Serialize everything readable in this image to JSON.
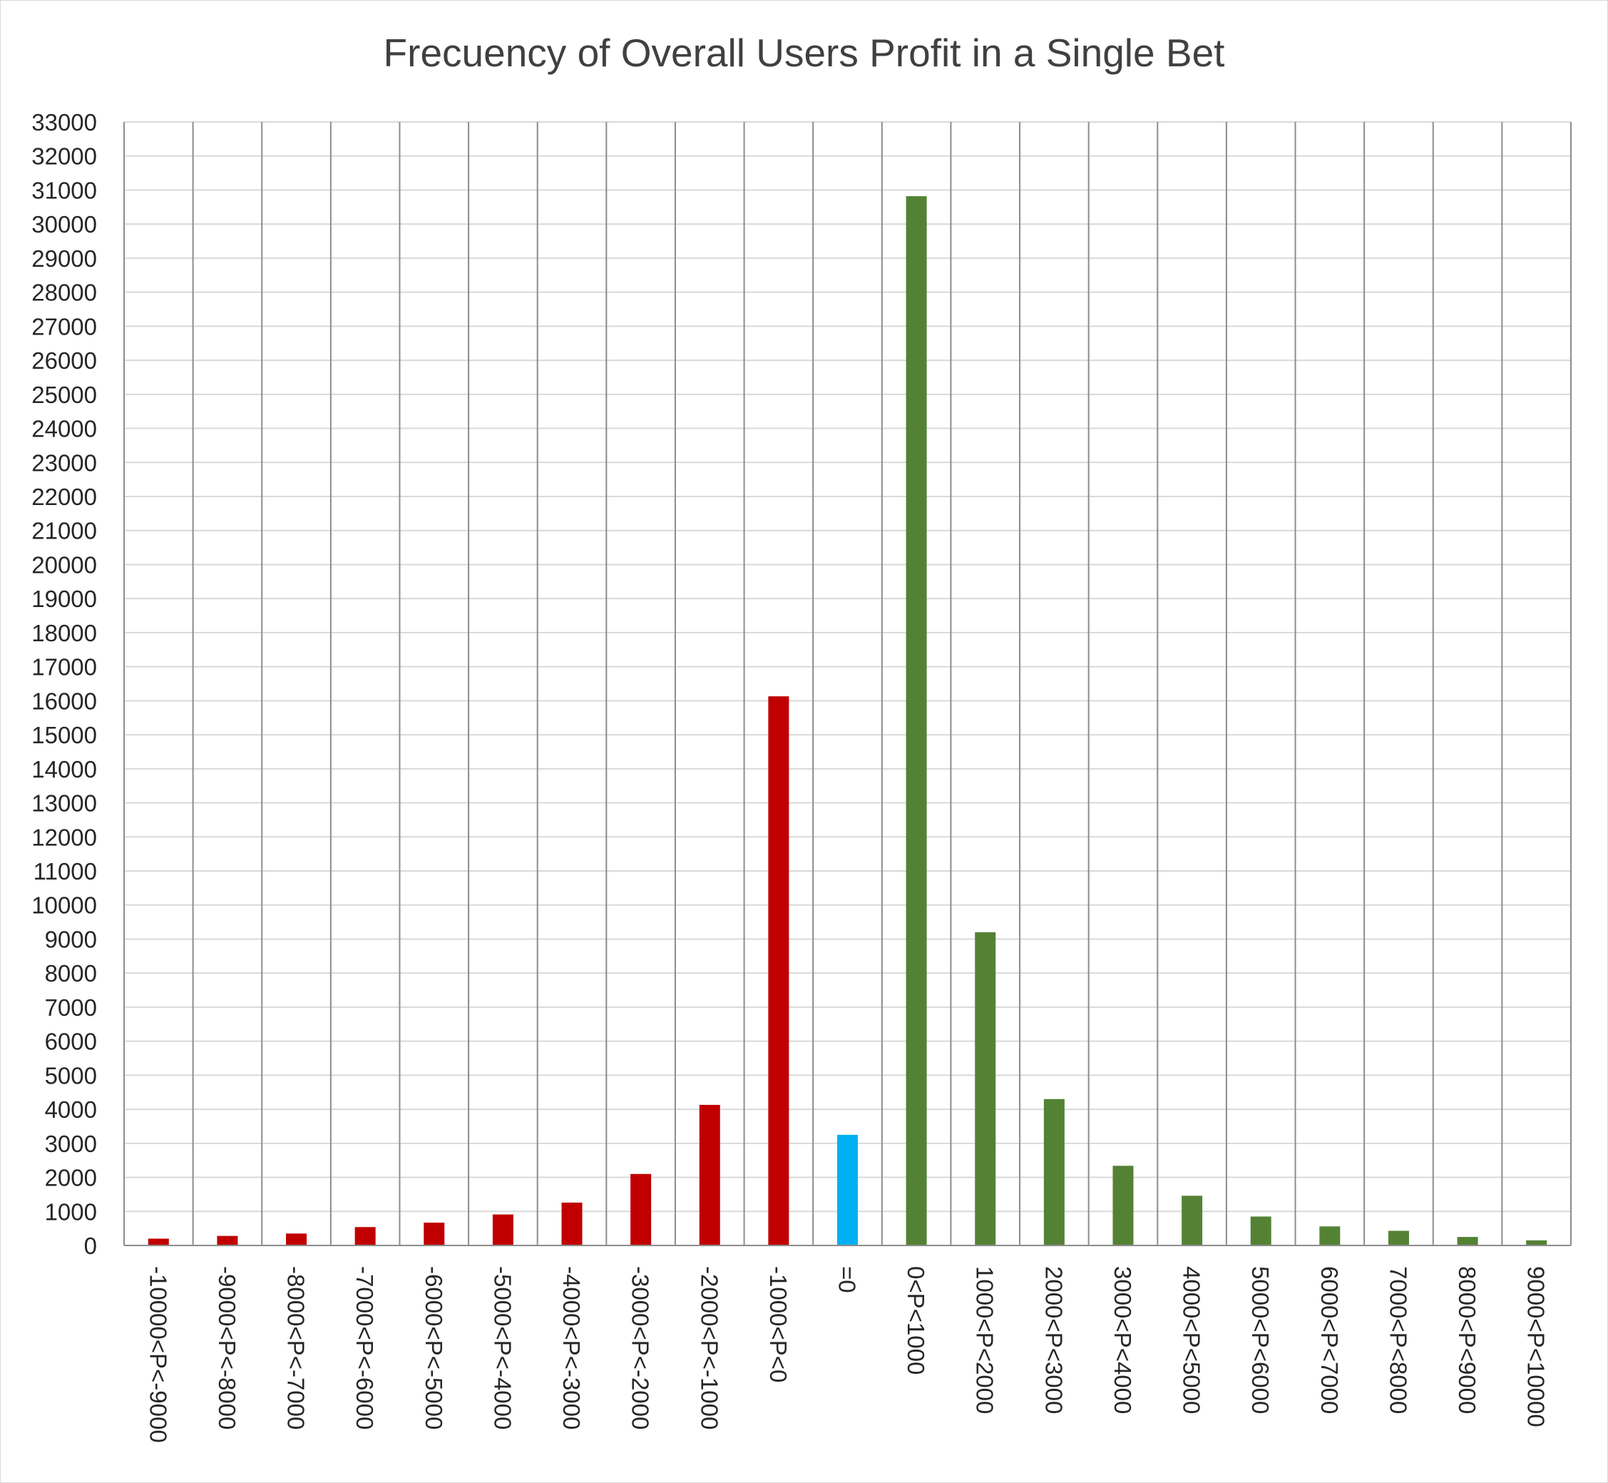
{
  "chart_data": {
    "type": "bar",
    "title": "Frecuency of Overall Users Profit in a Single Bet",
    "xlabel": "",
    "ylabel": "",
    "ylim": [
      0,
      33000
    ],
    "ytick_step": 1000,
    "grid": true,
    "legend": "none",
    "categories": [
      "-10000<P<-9000",
      "-9000<P<-8000",
      "-8000<P<-7000",
      "-7000<P<-6000",
      "-6000<P<-5000",
      "-5000<P<-4000",
      "-4000<P<-3000",
      "-3000<P<-2000",
      "-2000<P<-1000",
      "-1000<P<0",
      "=0",
      "0<P<1000",
      "1000<P<2000",
      "2000<P<3000",
      "3000<P<4000",
      "4000<P<5000",
      "5000<P<6000",
      "6000<P<7000",
      "7000<P<8000",
      "8000<P<9000",
      "9000<P<10000"
    ],
    "values": [
      200,
      280,
      350,
      540,
      670,
      910,
      1260,
      2100,
      4130,
      16130,
      3250,
      30820,
      9200,
      4300,
      2340,
      1460,
      850,
      560,
      430,
      250,
      150
    ],
    "bar_colors": [
      "#c00000",
      "#c00000",
      "#c00000",
      "#c00000",
      "#c00000",
      "#c00000",
      "#c00000",
      "#c00000",
      "#c00000",
      "#c00000",
      "#00b0f0",
      "#548235",
      "#548235",
      "#548235",
      "#548235",
      "#548235",
      "#548235",
      "#548235",
      "#548235",
      "#548235",
      "#548235"
    ]
  }
}
